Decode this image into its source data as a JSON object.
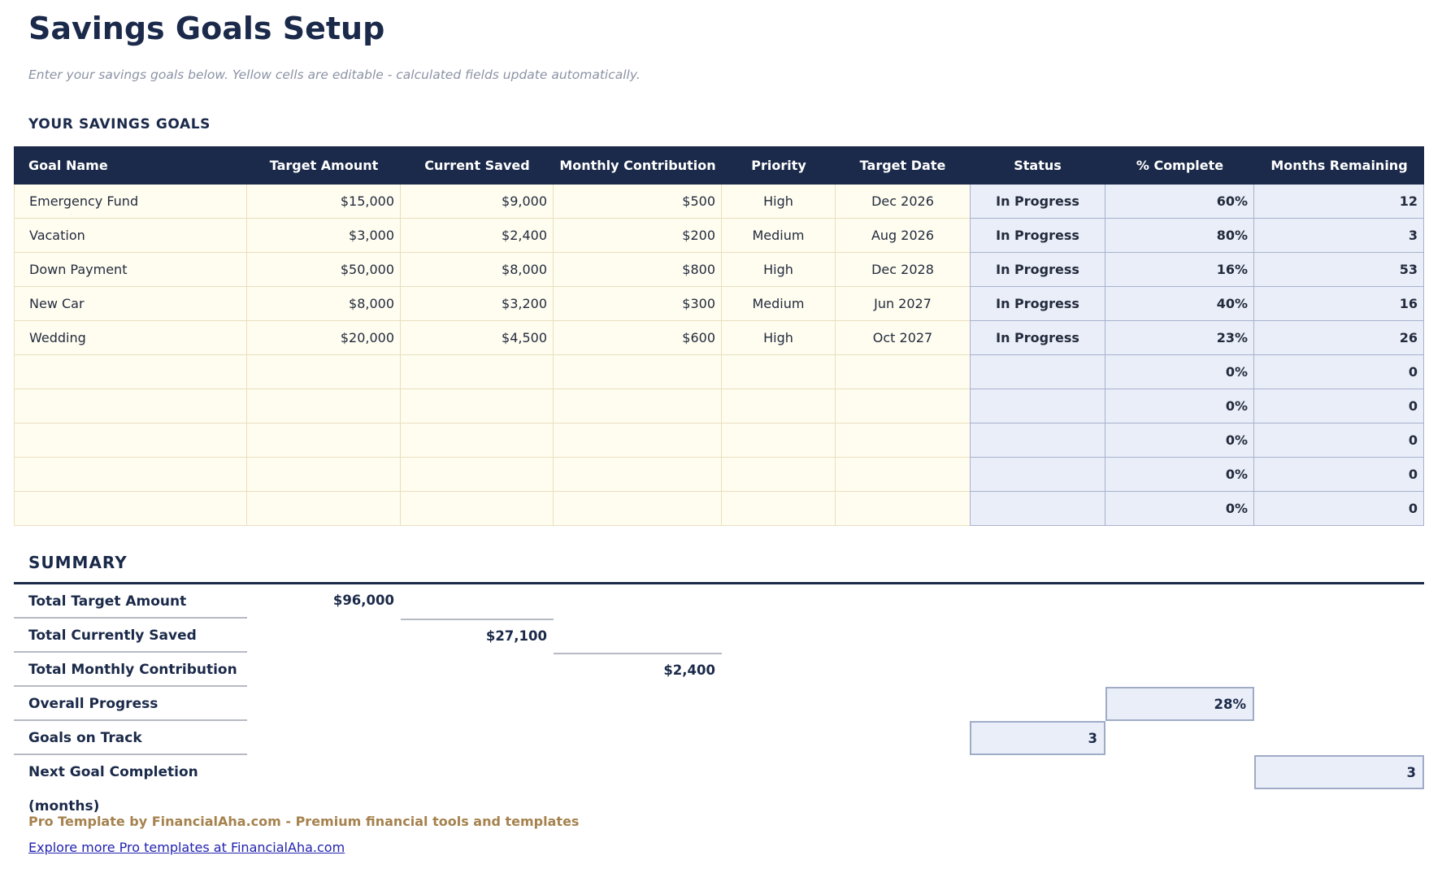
{
  "page": {
    "title": "Savings Goals Setup",
    "subtitle": "Enter your savings goals below. Yellow cells are editable - calculated fields update automatically."
  },
  "goals_section": {
    "heading": "YOUR SAVINGS GOALS",
    "columns": [
      {
        "label": "Goal Name",
        "slug": "goal-name",
        "align": "left",
        "type": "editable"
      },
      {
        "label": "Target Amount",
        "slug": "target-amount",
        "align": "right",
        "type": "editable"
      },
      {
        "label": "Current Saved",
        "slug": "current-saved",
        "align": "right",
        "type": "editable"
      },
      {
        "label": "Monthly Contribution",
        "slug": "monthly-contribution",
        "align": "right",
        "type": "editable"
      },
      {
        "label": "Priority",
        "slug": "priority",
        "align": "center",
        "type": "editable"
      },
      {
        "label": "Target Date",
        "slug": "target-date",
        "align": "center",
        "type": "editable"
      },
      {
        "label": "Status",
        "slug": "status",
        "align": "center",
        "type": "calculated"
      },
      {
        "label": "% Complete",
        "slug": "percent-complete",
        "align": "right",
        "type": "calculated"
      },
      {
        "label": "Months Remaining",
        "slug": "months-remaining",
        "align": "right",
        "type": "calculated"
      }
    ],
    "rows": [
      [
        "Emergency Fund",
        "$15,000",
        "$9,000",
        "$500",
        "High",
        "Dec 2026",
        "In Progress",
        "60%",
        "12"
      ],
      [
        "Vacation",
        "$3,000",
        "$2,400",
        "$200",
        "Medium",
        "Aug 2026",
        "In Progress",
        "80%",
        "3"
      ],
      [
        "Down Payment",
        "$50,000",
        "$8,000",
        "$800",
        "High",
        "Dec 2028",
        "In Progress",
        "16%",
        "53"
      ],
      [
        "New Car",
        "$8,000",
        "$3,200",
        "$300",
        "Medium",
        "Jun 2027",
        "In Progress",
        "40%",
        "16"
      ],
      [
        "Wedding",
        "$20,000",
        "$4,500",
        "$600",
        "High",
        "Oct 2027",
        "In Progress",
        "23%",
        "26"
      ],
      [
        "",
        "",
        "",
        "",
        "",
        "",
        "",
        "0%",
        "0"
      ],
      [
        "",
        "",
        "",
        "",
        "",
        "",
        "",
        "0%",
        "0"
      ],
      [
        "",
        "",
        "",
        "",
        "",
        "",
        "",
        "0%",
        "0"
      ],
      [
        "",
        "",
        "",
        "",
        "",
        "",
        "",
        "0%",
        "0"
      ],
      [
        "",
        "",
        "",
        "",
        "",
        "",
        "",
        "0%",
        "0"
      ]
    ]
  },
  "summary": {
    "heading": "SUMMARY",
    "rows": [
      {
        "label": "Total Target Amount",
        "value": "$96,000",
        "column": 1,
        "style": "plain"
      },
      {
        "label": "Total Currently Saved",
        "value": "$27,100",
        "column": 2,
        "style": "topline"
      },
      {
        "label": "Total Monthly Contribution",
        "value": "$2,400",
        "column": 3,
        "style": "topline"
      },
      {
        "label": "Overall Progress",
        "value": "28%",
        "column": 7,
        "style": "box"
      },
      {
        "label": "Goals on Track",
        "value": "3",
        "column": 6,
        "style": "box"
      },
      {
        "label": "Next Goal Completion (months)",
        "value": "3",
        "column": 8,
        "style": "box"
      }
    ]
  },
  "footer": {
    "credit": "Pro Template by FinancialAha.com - Premium financial tools and templates",
    "link": "Explore more Pro templates at FinancialAha.com"
  },
  "colors": {
    "header-bg": "#1b2a4a",
    "heading-text": "#1b2a4a",
    "editable-bg": "#fffdf0",
    "editable-border": "#e9dfbf",
    "calc-bg": "#eaeef8",
    "calc-border": "#a8b2ce",
    "subtitle-text": "#8b93a4",
    "credit-text": "#a5824e",
    "link-text": "#2323b0"
  }
}
